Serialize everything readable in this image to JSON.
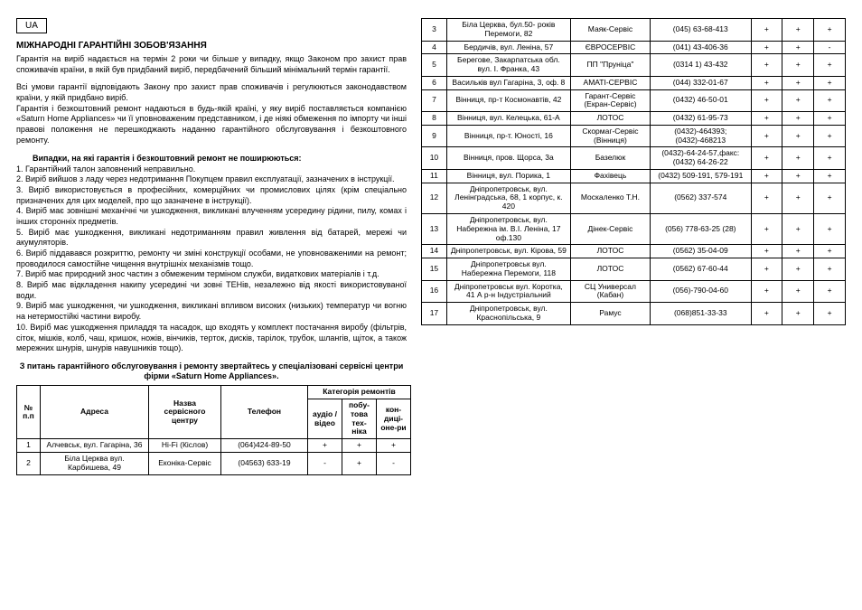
{
  "badge": "UA",
  "title": "МІЖНАРОДНІ ГАРАНТІЙНІ ЗОБОВ'ЯЗАННЯ",
  "para1": "Гарантія на виріб надається на термін 2 роки чи більше у випадку, якщо Законом про захист прав споживачів країни, в якій був придбаний виріб, передбачений більший мінімальний термін гарантії.",
  "para2": "Всі умови гарантії відповідають Закону про захист прав споживачів і регулюються законодавством країни, у якій придбано виріб.\nГарантія і безкоштовний ремонт надаються в будь-якій країні, у яку виріб поставляється компанією «Saturn Home Appliances» чи її уповноваженим представником, і де ніякі обмеження по імпорту чи інші правові положення не перешкоджають наданню гарантійного обслуговування і безкоштовного ремонту.",
  "cases_head": "Випадки, на які гарантія і безкоштовний ремонт не поширюються:",
  "cases": [
    "1.  Гарантійний талон заповнений неправильно.",
    "2. Виріб вийшов з ладу через недотримання Покупцем правил експлуатації, зазначених в інструкції.",
    "3.  Виріб використовується в професійних, комерційних чи промислових цілях (крім спеціально призначених для цих моделей, про що зазначене в інструкції).",
    "4.  Виріб має зовнішні механічні чи ушкодження, викликані влученням усередину  рідини,  пилу,  комах  і  інших  сторонніх предметів.",
    "5.  Виріб має ушкодження, викликані недотриманням правил живлення від батарей, мережі чи акумуляторів.",
    "6.  Виріб піддавався розкриттю, ремонту чи зміні конструкції особами, не уповноваженими на ремонт; проводилося самостійне чищення внутрішніх механізмів тощо.",
    "7.  Виріб має природний знос частин з обмеженим терміном служби, видаткових матеріалів і т.д.",
    "8.  Виріб має відкладення накипу усередині чи зовні ТЕНів, незалежно від якості використовуваної води.",
    "9. Виріб  має  ушкодження, чи ушкодження, викликані  впливом  високих (низьких) температур чи вогню на нетермостійкі частини виробу.",
    "10. Виріб має ушкодження приладдя та насадок, що входять у комплект постачання виробу (фільтрів, сіток, мішків, колб, чаш, кришок, ножів, вінчиків, терток, дисків, тарілок, трубок, шлангів, щіток, а також мережних шнурів, шнурів навушників тощо)."
  ],
  "footer_note": "З питань гарантійного обслуговування і ремонту звертайтесь у спеціалізовані сервісні центри фірми «Saturn Home Appliances».",
  "headers": {
    "num": "№ п.п",
    "addr": "Адреса",
    "name": "Назва сервісного центру",
    "phone": "Телефон",
    "cat": "Категорія ремонтів",
    "c1": "аудіо / відео",
    "c2": "побу-това тех-ніка",
    "c3": "кон-диці-оне-ри"
  },
  "rows_left": [
    {
      "n": "1",
      "addr": "Алчевськ, вул. Гагаріна, 36",
      "name": "Hi-Fi (Кіслов)",
      "phone": "(064)424-89-50",
      "a": "+",
      "b": "+",
      "c": "+"
    },
    {
      "n": "2",
      "addr": "Біла Церква вул. Карбишева, 49",
      "name": "Еконіка-Сервіс",
      "phone": "(04563) 633-19",
      "a": "-",
      "b": "+",
      "c": "-"
    }
  ],
  "rows_right": [
    {
      "n": "3",
      "addr": "Біла Церква, бул.50- років Перемоги, 82",
      "name": "Маяк-Сервіс",
      "phone": "(045) 63-68-413",
      "a": "+",
      "b": "+",
      "c": "+"
    },
    {
      "n": "4",
      "addr": "Бердичів, вул. Леніна, 57",
      "name": "ЄВРОСЕРВІС",
      "phone": "(041) 43-406-36",
      "a": "+",
      "b": "+",
      "c": "-"
    },
    {
      "n": "5",
      "addr": "Берегове, Закарпатська обл. вул. І. Франка, 43",
      "name": "ПП \"Пруніца\"",
      "phone": "(0314 1) 43-432",
      "a": "+",
      "b": "+",
      "c": "+"
    },
    {
      "n": "6",
      "addr": "Васильків вул Гагаріна, 3, оф. 8",
      "name": "АМАТІ-СЕРВІС",
      "phone": "(044) 332-01-67",
      "a": "+",
      "b": "+",
      "c": "+"
    },
    {
      "n": "7",
      "addr": "Вінниця, пр-т Космонавтів, 42",
      "name": "Гарант-Сервіс (Екран-Сервіс)",
      "phone": "(0432) 46-50-01",
      "a": "+",
      "b": "+",
      "c": "+"
    },
    {
      "n": "8",
      "addr": "Вінниця, вул. Келецька, 61-А",
      "name": "ЛОТОС",
      "phone": "(0432) 61-95-73",
      "a": "+",
      "b": "+",
      "c": "+"
    },
    {
      "n": "9",
      "addr": "Вінниця, пр-т. Юності, 16",
      "name": "Скормаг-Сервіс (Вінниця)",
      "phone": "(0432)-464393; (0432)-468213",
      "a": "+",
      "b": "+",
      "c": "+"
    },
    {
      "n": "10",
      "addr": "Вінниця, пров. Щорса, 3а",
      "name": "Базелюк",
      "phone": "(0432)-64-24-57,факс: (0432) 64-26-22",
      "a": "+",
      "b": "+",
      "c": "+"
    },
    {
      "n": "11",
      "addr": "Вінниця, вул. Порика, 1",
      "name": "Фахівець",
      "phone": "(0432) 509-191, 579-191",
      "a": "+",
      "b": "+",
      "c": "+"
    },
    {
      "n": "12",
      "addr": "Дніпропетровськ, вул. Ленінградська, 68, 1 корпус, к. 420",
      "name": "Москаленко Т.Н.",
      "phone": "(0562) 337-574",
      "a": "+",
      "b": "+",
      "c": "+"
    },
    {
      "n": "13",
      "addr": "Дніпропетровськ, вул. Набережна ім. В.І. Леніна, 17 оф.130",
      "name": "Дінек-Сервіс",
      "phone": "(056) 778-63-25 (28)",
      "a": "+",
      "b": "+",
      "c": "+"
    },
    {
      "n": "14",
      "addr": "Дніпропетровськ, вул. Кірова, 59",
      "name": "ЛОТОС",
      "phone": "(0562) 35-04-09",
      "a": "+",
      "b": "+",
      "c": "+"
    },
    {
      "n": "15",
      "addr": "Дніпропетровськ вул. Набережна Перемоги, 118",
      "name": "ЛОТОС",
      "phone": "(0562) 67-60-44",
      "a": "+",
      "b": "+",
      "c": "+"
    },
    {
      "n": "16",
      "addr": "Дніпропетровськ вул. Коротка, 41 А р-н Індустріальний",
      "name": "СЦ Универсал (Кабан)",
      "phone": "(056)-790-04-60",
      "a": "+",
      "b": "+",
      "c": "+"
    },
    {
      "n": "17",
      "addr": "Дніпропетровськ, вул. Краснопільська, 9",
      "name": "Рамус",
      "phone": "(068)851-33-33",
      "a": "+",
      "b": "+",
      "c": "+"
    }
  ]
}
